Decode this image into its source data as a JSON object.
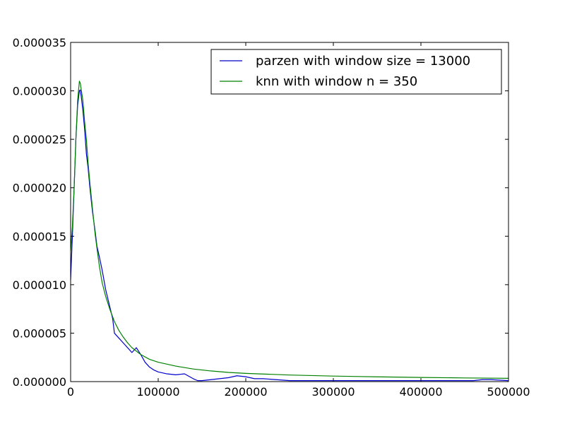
{
  "chart_data": {
    "type": "line",
    "title": "",
    "xlabel": "",
    "ylabel": "",
    "xlim": [
      0,
      500000
    ],
    "ylim": [
      0,
      3.5e-05
    ],
    "x_ticks": [
      0,
      100000,
      200000,
      300000,
      400000,
      500000
    ],
    "x_tick_labels": [
      "0",
      "100000",
      "200000",
      "300000",
      "400000",
      "500000"
    ],
    "y_ticks": [
      0,
      5e-06,
      1e-05,
      1.5e-05,
      2e-05,
      2.5e-05,
      3e-05,
      3.5e-05
    ],
    "y_tick_labels": [
      "0.000000",
      "0.000005",
      "0.000010",
      "0.000015",
      "0.000020",
      "0.000025",
      "0.000030",
      "0.000035"
    ],
    "grid": false,
    "legend_position": "top-right",
    "series": [
      {
        "name": "parzen with window size = 13000",
        "color": "#0000cc",
        "x": [
          0,
          2000,
          4000,
          6000,
          8000,
          10000,
          11000,
          12000,
          14000,
          16000,
          18000,
          20000,
          22000,
          25000,
          28000,
          30000,
          33000,
          36000,
          40000,
          44000,
          48000,
          50000,
          55000,
          60000,
          65000,
          70000,
          75000,
          80000,
          85000,
          90000,
          95000,
          100000,
          110000,
          120000,
          130000,
          140000,
          145000,
          150000,
          160000,
          170000,
          180000,
          190000,
          200000,
          210000,
          220000,
          250000,
          300000,
          350000,
          400000,
          450000,
          460000,
          470000,
          480000,
          500000
        ],
        "y": [
          1.05e-05,
          1.5e-05,
          2e-05,
          2.5e-05,
          2.85e-05,
          3e-05,
          3.01e-05,
          2.95e-05,
          2.8e-05,
          2.6e-05,
          2.35e-05,
          2.2e-05,
          2e-05,
          1.75e-05,
          1.55e-05,
          1.4e-05,
          1.28e-05,
          1.15e-05,
          9.5e-06,
          8e-06,
          6.5e-06,
          5e-06,
          4.5e-06,
          4e-06,
          3.5e-06,
          3e-06,
          3.5e-06,
          2.8e-06,
          2e-06,
          1.5e-06,
          1.2e-06,
          1e-06,
          8e-07,
          7e-07,
          8e-07,
          3e-07,
          1e-07,
          1e-07,
          2e-07,
          3e-07,
          4e-07,
          6e-07,
          5e-07,
          3e-07,
          3e-07,
          1e-07,
          1e-07,
          1e-07,
          1e-07,
          1e-07,
          1e-07,
          2e-07,
          2e-07,
          1e-07
        ]
      },
      {
        "name": "knn with window n = 350",
        "color": "#008000",
        "x": [
          0,
          2000,
          4000,
          6000,
          8000,
          10000,
          11000,
          12000,
          14000,
          16000,
          18000,
          20000,
          22000,
          25000,
          28000,
          30000,
          33000,
          36000,
          40000,
          45000,
          50000,
          55000,
          60000,
          65000,
          70000,
          80000,
          90000,
          100000,
          120000,
          140000,
          160000,
          180000,
          200000,
          250000,
          300000,
          350000,
          400000,
          450000,
          500000
        ],
        "y": [
          1.35e-05,
          1.6e-05,
          2e-05,
          2.5e-05,
          2.9e-05,
          3.1e-05,
          3.08e-05,
          3.02e-05,
          2.9e-05,
          2.68e-05,
          2.5e-05,
          2.25e-05,
          2.05e-05,
          1.78e-05,
          1.52e-05,
          1.38e-05,
          1.18e-05,
          1.02e-05,
          8.8e-06,
          7.4e-06,
          6.2e-06,
          5.3e-06,
          4.6e-06,
          4e-06,
          3.5e-06,
          2.8e-06,
          2.3e-06,
          2e-06,
          1.6e-06,
          1.3e-06,
          1.1e-06,
          9.5e-07,
          8.5e-07,
          6.8e-07,
          5.7e-07,
          4.9e-07,
          4.3e-07,
          3.8e-07,
          3.4e-07
        ]
      }
    ]
  }
}
